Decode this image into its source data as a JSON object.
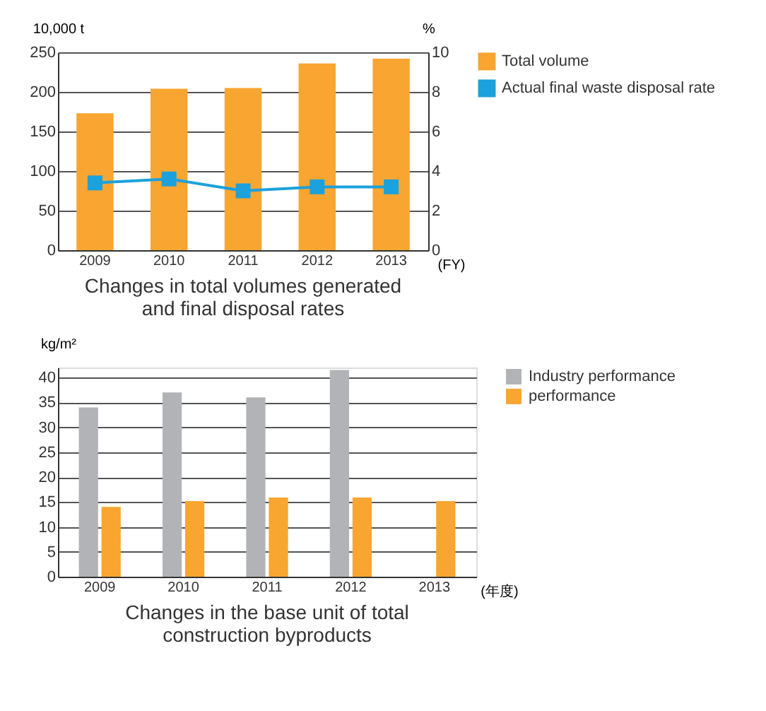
{
  "chart_data": [
    {
      "type": "bar",
      "title": "Changes in total volumes generated and final disposal rates",
      "xlabel": "(FY)",
      "ylabel": "10,000 t",
      "y2label": "%",
      "categories": [
        "2009",
        "2010",
        "2011",
        "2012",
        "2013"
      ],
      "series": [
        {
          "name": "Total volume",
          "color": "#f8a531",
          "values": [
            173,
            204,
            205,
            236,
            242
          ]
        },
        {
          "name": "Actual final waste disposal rate",
          "type": "line",
          "axis": "y2",
          "color": "#1ba1dc",
          "values": [
            3.4,
            3.6,
            3.0,
            3.2,
            3.2
          ]
        }
      ],
      "ylim": [
        0,
        250
      ],
      "yticks": [
        0,
        50,
        100,
        150,
        200,
        250
      ],
      "y2lim": [
        0,
        10
      ],
      "y2ticks": [
        0,
        2,
        4,
        6,
        8,
        10
      ],
      "grid": "y",
      "legend": "right",
      "marker": "square"
    },
    {
      "type": "bar",
      "title": "Changes in the base unit of total construction byproducts",
      "xlabel": "(年度)",
      "ylabel": "kg/m²",
      "categories": [
        "2009",
        "2010",
        "2011",
        "2012",
        "2013"
      ],
      "series": [
        {
          "name": "Industry performance",
          "color": "#b2b3b6",
          "values": [
            34,
            37,
            36,
            41.5,
            null
          ]
        },
        {
          "name": "performance",
          "color": "#f8a531",
          "values": [
            14,
            15.2,
            15.9,
            15.9,
            15.2
          ]
        }
      ],
      "ylim": [
        0,
        42
      ],
      "yticks": [
        0,
        5,
        10,
        15,
        20,
        25,
        30,
        35,
        40
      ],
      "grid": "y",
      "legend": "right"
    }
  ]
}
